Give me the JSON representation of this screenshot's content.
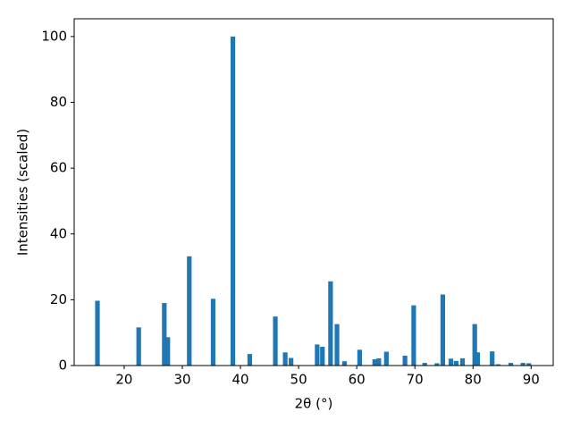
{
  "chart_data": {
    "type": "bar",
    "x": [
      15.4,
      22.5,
      26.9,
      27.5,
      31.2,
      35.3,
      38.7,
      41.6,
      46.0,
      47.7,
      48.7,
      53.2,
      54.1,
      55.5,
      56.6,
      57.9,
      60.5,
      63.1,
      63.8,
      65.1,
      68.3,
      69.8,
      71.7,
      73.8,
      74.8,
      76.2,
      77.1,
      78.2,
      80.3,
      80.8,
      83.3,
      84.3,
      86.5,
      88.6,
      89.6
    ],
    "values": [
      19.7,
      11.6,
      19.0,
      8.6,
      33.2,
      20.3,
      100,
      3.5,
      14.9,
      4.0,
      2.3,
      6.4,
      5.7,
      25.6,
      12.6,
      1.3,
      4.8,
      1.9,
      2.2,
      4.2,
      3.0,
      18.3,
      0.8,
      0.7,
      21.6,
      2.1,
      1.4,
      2.2,
      12.6,
      4.0,
      4.3,
      0.4,
      0.8,
      0.8,
      0.7
    ],
    "color": "#1f77b4",
    "xlabel": "2θ (°)",
    "ylabel": "Intensities (scaled)",
    "xlim": [
      11.4,
      93.8
    ],
    "ylim": [
      0,
      105.4
    ],
    "xticks": [
      20,
      30,
      40,
      50,
      60,
      70,
      80,
      90
    ],
    "yticks": [
      0,
      20,
      40,
      60,
      80,
      100
    ]
  }
}
